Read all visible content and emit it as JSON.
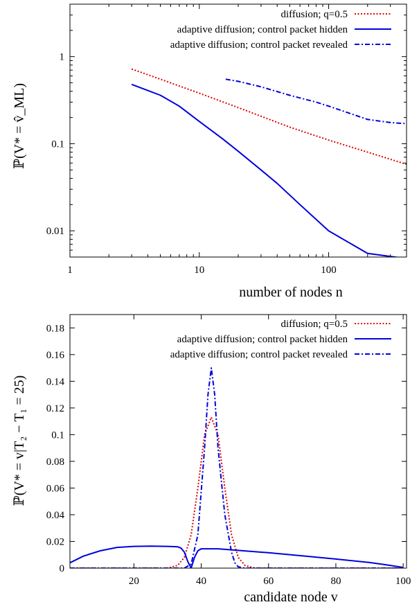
{
  "chart_data": [
    {
      "type": "line",
      "xlabel": "number of nodes n",
      "ylabel": "ℙ(V* = v̂_ML)",
      "x_scale": "log",
      "y_scale": "log",
      "xlim": [
        1,
        400
      ],
      "ylim": [
        0.005,
        4
      ],
      "x_ticks": [
        1,
        10,
        100
      ],
      "x_tick_labels": [
        "1",
        "10",
        "100"
      ],
      "y_ticks": [
        0.01,
        0.1,
        1
      ],
      "y_tick_labels": [
        "0.01",
        "0.1",
        "1"
      ],
      "legend_position": "top-right",
      "series": [
        {
          "name": "diffusion; q=0.5",
          "color": "#dd0000",
          "dash": "dotted",
          "x": [
            3,
            5,
            10,
            20,
            50,
            100,
            200,
            400
          ],
          "y": [
            0.72,
            0.55,
            0.38,
            0.26,
            0.155,
            0.11,
            0.08,
            0.058
          ]
        },
        {
          "name": "adaptive diffusion; control packet hidden",
          "color": "#0000dd",
          "dash": "solid",
          "x": [
            3,
            5,
            7,
            10,
            15,
            20,
            30,
            40,
            60,
            100,
            200,
            400
          ],
          "y": [
            0.48,
            0.36,
            0.27,
            0.18,
            0.115,
            0.082,
            0.05,
            0.035,
            0.02,
            0.01,
            0.0055,
            0.0048
          ]
        },
        {
          "name": "adaptive diffusion; control packet revealed",
          "color": "#0000dd",
          "dash": "dashdot",
          "x": [
            16,
            20,
            30,
            50,
            80,
            100,
            150,
            200,
            300,
            400
          ],
          "y": [
            0.55,
            0.52,
            0.45,
            0.36,
            0.3,
            0.27,
            0.22,
            0.19,
            0.175,
            0.17
          ]
        }
      ]
    },
    {
      "type": "line",
      "xlabel": "candidate node v",
      "ylabel": "ℙ(V* = v|T₂ − T₁ = 25)",
      "xlim": [
        1,
        101
      ],
      "ylim": [
        0,
        0.19
      ],
      "x_ticks": [
        20,
        40,
        60,
        80,
        100
      ],
      "x_tick_labels": [
        "20",
        "40",
        "60",
        "80",
        "100"
      ],
      "y_ticks": [
        0,
        0.02,
        0.04,
        0.06,
        0.08,
        0.1,
        0.12,
        0.14,
        0.16,
        0.18
      ],
      "y_tick_labels": [
        "0",
        "0.02",
        "0.04",
        "0.06",
        "0.08",
        "0.1",
        "0.12",
        "0.14",
        "0.16",
        "0.18"
      ],
      "legend_position": "top-right",
      "series": [
        {
          "name": "diffusion; q=0.5",
          "color": "#dd0000",
          "dash": "dotted",
          "x": [
            1,
            30,
            33,
            35,
            37,
            39,
            41,
            43,
            45,
            47,
            49,
            51,
            53,
            56,
            100
          ],
          "y": [
            0,
            0,
            0.002,
            0.008,
            0.025,
            0.06,
            0.1,
            0.113,
            0.1,
            0.06,
            0.025,
            0.008,
            0.002,
            0,
            0
          ]
        },
        {
          "name": "adaptive diffusion; control packet hidden",
          "color": "#0000dd",
          "dash": "solid",
          "x": [
            1,
            5,
            10,
            15,
            20,
            25,
            30,
            33,
            34,
            35,
            36,
            37,
            38,
            39,
            40,
            45,
            50,
            60,
            70,
            80,
            90,
            95,
            100
          ],
          "y": [
            0.004,
            0.009,
            0.013,
            0.0155,
            0.0163,
            0.0165,
            0.0163,
            0.016,
            0.015,
            0.012,
            0.005,
            0,
            0.008,
            0.013,
            0.0145,
            0.0145,
            0.0135,
            0.0115,
            0.0092,
            0.0068,
            0.0042,
            0.0025,
            0.0005
          ]
        },
        {
          "name": "adaptive diffusion; control packet revealed",
          "color": "#0000dd",
          "dash": "dashdot",
          "x": [
            1,
            35,
            37,
            39,
            41,
            42,
            43,
            44,
            45,
            47,
            49,
            50,
            51,
            53,
            100
          ],
          "y": [
            0,
            0,
            0.003,
            0.025,
            0.09,
            0.13,
            0.15,
            0.13,
            0.09,
            0.04,
            0.012,
            0.004,
            0.001,
            0,
            0
          ]
        }
      ]
    }
  ]
}
